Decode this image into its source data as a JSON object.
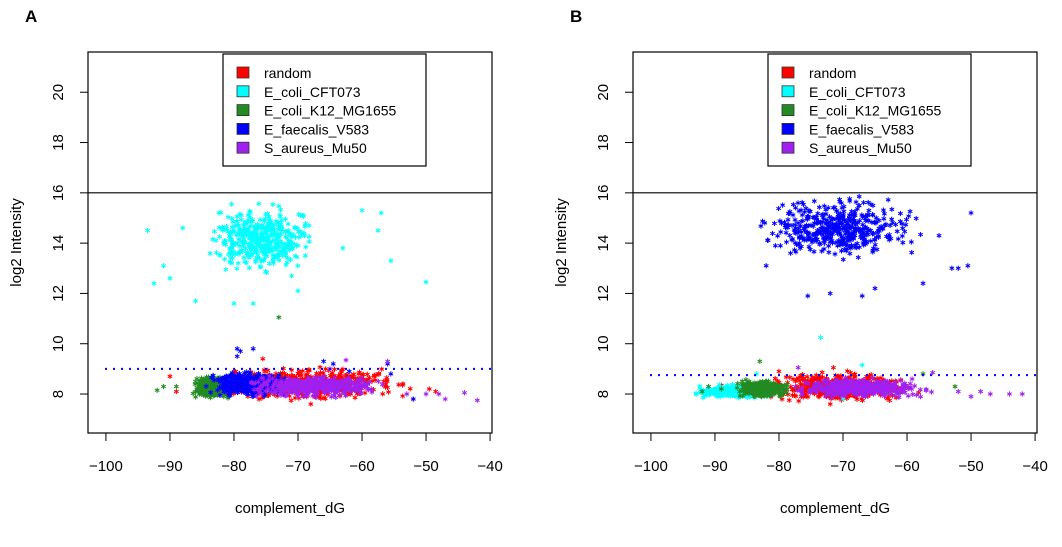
{
  "chart_data": [
    {
      "type": "scatter",
      "panel_label": "A",
      "xlabel": "complement_dG",
      "ylabel": "log2 Intensity",
      "xlim": [
        -102.8,
        -39.7
      ],
      "ylim": [
        6.45,
        21.6
      ],
      "xticks": [
        -100,
        -90,
        -80,
        -70,
        -60,
        -50,
        -40
      ],
      "yticks": [
        8,
        10,
        12,
        14,
        16,
        18,
        20
      ],
      "grid": false,
      "legend_placement": "top-center",
      "marker": "asterisk",
      "hlines": [
        {
          "y": 16,
          "style": "solid",
          "color": "#000000"
        },
        {
          "y": 9,
          "style": "dotted",
          "color": "#0000FF"
        }
      ],
      "series": [
        {
          "name": "random",
          "color": "#FF0000",
          "core": {
            "x": [
              -86,
              -50
            ],
            "y": [
              7.6,
              9.2
            ]
          },
          "points": [
            [
              -90,
              8.7
            ],
            [
              -89,
              8.1
            ],
            [
              -75.5,
              9.4
            ],
            [
              -68,
              7.6
            ],
            [
              -49.5,
              8.2
            ],
            [
              -48.5,
              8.1
            ],
            [
              -52,
              7.8
            ]
          ]
        },
        {
          "name": "E_coli_CFT073",
          "color": "#00FFFF",
          "core": {
            "x": [
              -86,
              -66
            ],
            "y": [
              12.6,
              15.8
            ]
          },
          "points": [
            [
              -93.5,
              14.5
            ],
            [
              -92.5,
              12.4
            ],
            [
              -91,
              13.1
            ],
            [
              -90,
              12.6
            ],
            [
              -88,
              14.6
            ],
            [
              -86,
              11.7
            ],
            [
              -80,
              11.6
            ],
            [
              -77,
              11.6
            ],
            [
              -60,
              15.3
            ],
            [
              -57.5,
              14.5
            ],
            [
              -57,
              15.2
            ],
            [
              -55.5,
              13.3
            ],
            [
              -63,
              13.8
            ],
            [
              -50,
              12.45
            ],
            [
              -70,
              12.1
            ],
            [
              -71,
              12.7
            ]
          ]
        },
        {
          "name": "E_coli_K12_MG1655",
          "color": "#228B22",
          "core": {
            "x": [
              -87,
              -79
            ],
            "y": [
              7.8,
              8.8
            ]
          },
          "points": [
            [
              -92,
              8.15
            ],
            [
              -91,
              8.3
            ],
            [
              -89,
              8.3
            ],
            [
              -73,
              11.05
            ]
          ]
        },
        {
          "name": "E_faecalis_V583",
          "color": "#0000FF",
          "core": {
            "x": [
              -85,
              -70
            ],
            "y": [
              7.8,
              9.0
            ]
          },
          "points": [
            [
              -79.5,
              9.8
            ],
            [
              -79,
              9.7
            ],
            [
              -77,
              9.8
            ],
            [
              -79.5,
              9.5
            ],
            [
              -66,
              9.3
            ],
            [
              -64.5,
              9.2
            ],
            [
              -56,
              9.2
            ],
            [
              -55.5,
              8.8
            ],
            [
              -62,
              8.9
            ],
            [
              -52,
              7.8
            ]
          ]
        },
        {
          "name": "S_aureus_Mu50",
          "color": "#A020F0",
          "core": {
            "x": [
              -80,
              -55
            ],
            "y": [
              7.8,
              8.8
            ]
          },
          "points": [
            [
              -62.5,
              9.35
            ],
            [
              -56,
              9.3
            ],
            [
              -53,
              8.0
            ],
            [
              -50,
              8.0
            ],
            [
              -48,
              8.0
            ],
            [
              -47,
              7.8
            ],
            [
              -44,
              8.05
            ],
            [
              -42,
              7.75
            ],
            [
              -65,
              9.0
            ]
          ]
        }
      ]
    },
    {
      "type": "scatter",
      "panel_label": "B",
      "xlabel": "complement_dG",
      "ylabel": "log2 Intensity",
      "xlim": [
        -102.8,
        -39.7
      ],
      "ylim": [
        6.45,
        21.6
      ],
      "xticks": [
        -100,
        -90,
        -80,
        -70,
        -60,
        -50,
        -40
      ],
      "yticks": [
        8,
        10,
        12,
        14,
        16,
        18,
        20
      ],
      "grid": false,
      "legend_placement": "top-center",
      "marker": "asterisk",
      "hlines": [
        {
          "y": 16,
          "style": "solid",
          "color": "#000000"
        },
        {
          "y": 8.75,
          "style": "dotted",
          "color": "#0000FF"
        }
      ],
      "series": [
        {
          "name": "random",
          "color": "#FF0000",
          "core": {
            "x": [
              -85,
              -57
            ],
            "y": [
              7.6,
              9.0
            ]
          },
          "points": [
            [
              -89,
              8.35
            ],
            [
              -80,
              8.9
            ],
            [
              -72,
              7.6
            ],
            [
              -71.5,
              9.05
            ]
          ]
        },
        {
          "name": "E_coli_CFT073",
          "color": "#00FFFF",
          "core": {
            "x": [
              -94,
              -80
            ],
            "y": [
              7.8,
              8.4
            ]
          },
          "points": [
            [
              -73.5,
              10.25
            ],
            [
              -67,
              9.15
            ],
            [
              -83.5,
              8.8
            ],
            [
              -70,
              7.8
            ]
          ]
        },
        {
          "name": "E_coli_K12_MG1655",
          "color": "#228B22",
          "core": {
            "x": [
              -87,
              -78
            ],
            "y": [
              7.8,
              8.6
            ]
          },
          "points": [
            [
              -92,
              8.1
            ],
            [
              -91,
              8.3
            ],
            [
              -89,
              8.2
            ],
            [
              -83,
              9.3
            ],
            [
              -57.5,
              8.8
            ],
            [
              -52.5,
              8.3
            ]
          ]
        },
        {
          "name": "E_faecalis_V583",
          "color": "#0000FF",
          "core": {
            "x": [
              -85,
              -56
            ],
            "y": [
              13.2,
              16.0
            ]
          },
          "points": [
            [
              -50,
              15.2
            ],
            [
              -53,
              13.0
            ],
            [
              -52,
              13.0
            ],
            [
              -50.5,
              13.1
            ],
            [
              -75.5,
              11.9
            ],
            [
              -72,
              12.0
            ],
            [
              -67,
              11.9
            ],
            [
              -65,
              12.2
            ],
            [
              -57.5,
              12.4
            ],
            [
              -82,
              13.1
            ],
            [
              -55,
              14.3
            ]
          ]
        },
        {
          "name": "S_aureus_Mu50",
          "color": "#A020F0",
          "core": {
            "x": [
              -80,
              -55
            ],
            "y": [
              7.8,
              8.7
            ]
          },
          "points": [
            [
              -56,
              8.85
            ],
            [
              -52,
              8.1
            ],
            [
              -50,
              7.9
            ],
            [
              -48.5,
              8.1
            ],
            [
              -47,
              8.0
            ],
            [
              -44,
              8.0
            ],
            [
              -42,
              8.0
            ],
            [
              -77,
              9.05
            ]
          ]
        }
      ]
    }
  ]
}
